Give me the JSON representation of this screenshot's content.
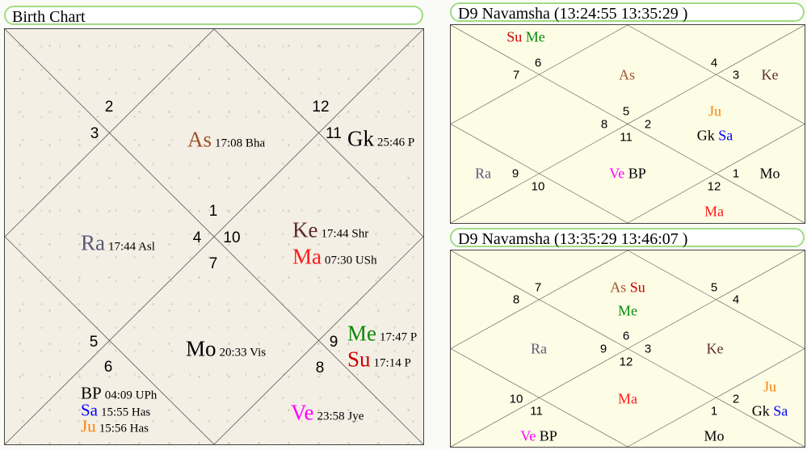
{
  "colors": {
    "As": "#a0522d",
    "Gk": "#000000",
    "Ke": "#5c2b2b",
    "Ma": "#ff1a1a",
    "Ra": "#5a5a7a",
    "Mo": "#000000",
    "Me": "#0a8a0a",
    "Su": "#cc0000",
    "Ve": "#ff00ff",
    "Sa": "#0000ff",
    "Ju": "#ff8000",
    "BP": "#000000",
    "accent": "#9fdc84"
  },
  "birth_chart": {
    "title": "Birth Chart",
    "houses": [
      "1",
      "2",
      "3",
      "4",
      "5",
      "6",
      "7",
      "8",
      "9",
      "10",
      "11",
      "12"
    ],
    "planets": {
      "As": {
        "abbr": "As",
        "detail": "17:08 Bha"
      },
      "Gk": {
        "abbr": "Gk",
        "detail": "25:46 P"
      },
      "Ke": {
        "abbr": "Ke",
        "detail": "17:44 Shr"
      },
      "Ma": {
        "abbr": "Ma",
        "detail": "07:30 USh"
      },
      "Ra": {
        "abbr": "Ra",
        "detail": "17:44 Asl"
      },
      "Mo": {
        "abbr": "Mo",
        "detail": "20:33 Vis"
      },
      "Me": {
        "abbr": "Me",
        "detail": "17:47 P"
      },
      "Su": {
        "abbr": "Su",
        "detail": "17:14 P"
      },
      "BP": {
        "abbr": "BP",
        "detail": "04:09 UPh"
      },
      "Sa": {
        "abbr": "Sa",
        "detail": "15:55 Has"
      },
      "Ju": {
        "abbr": "Ju",
        "detail": "15:56 Has"
      },
      "Ve": {
        "abbr": "Ve",
        "detail": "23:58 Jye"
      }
    }
  },
  "d9_a": {
    "title": "D9 Navamsha  (13:24:55  13:35:29 )"
  },
  "d9_b": {
    "title": "D9 Navamsha  (13:35:29  13:46:07 )"
  },
  "p": {
    "As": "As",
    "Gk": "Gk",
    "Ke": "Ke",
    "Ma": "Ma",
    "Ra": "Ra",
    "Mo": "Mo",
    "Me": "Me",
    "Su": "Su",
    "BP": "BP",
    "Sa": "Sa",
    "Ju": "Ju",
    "Ve": "Ve"
  },
  "h": {
    "1": "1",
    "2": "2",
    "3": "3",
    "4": "4",
    "5": "5",
    "6": "6",
    "7": "7",
    "8": "8",
    "9": "9",
    "10": "10",
    "11": "11",
    "12": "12"
  }
}
